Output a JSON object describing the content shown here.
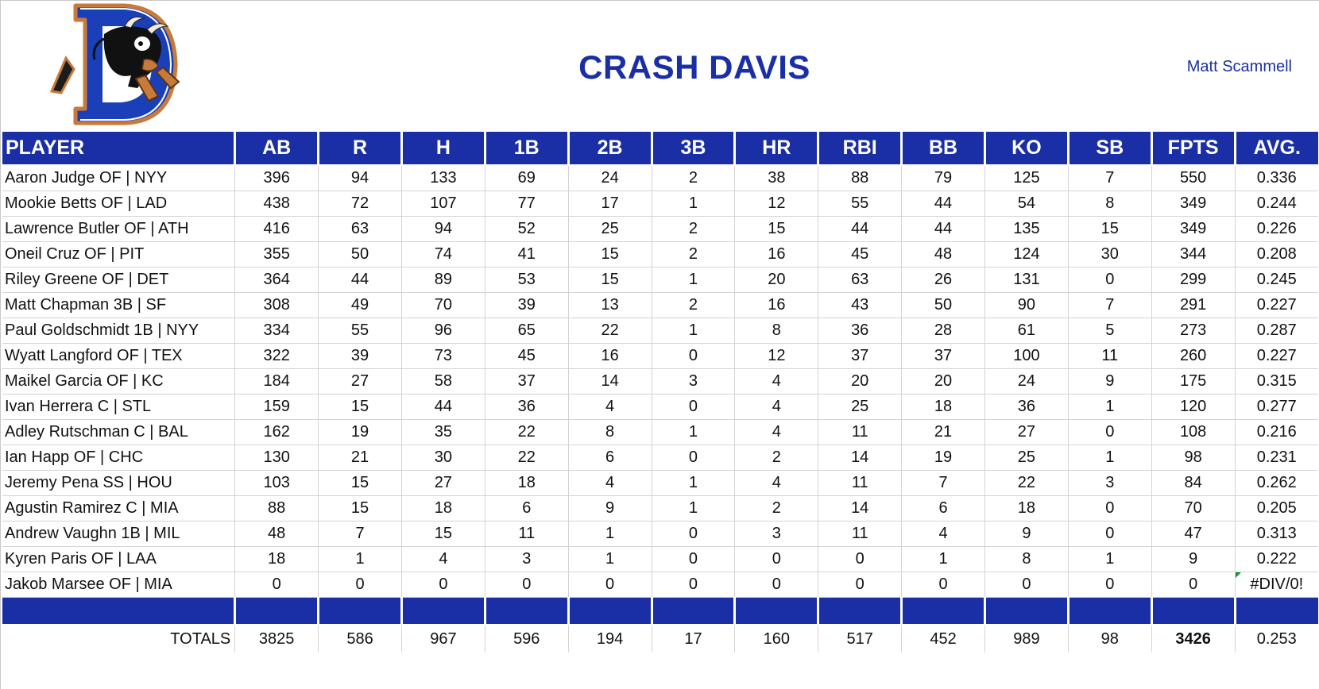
{
  "header": {
    "title": "CRASH DAVIS",
    "owner": "Matt Scammell"
  },
  "colors": {
    "accent": "#1a2fa6",
    "logo_orange": "#c87a3a",
    "error_flag": "#1f8f3a"
  },
  "columns": [
    "PLAYER",
    "AB",
    "R",
    "H",
    "1B",
    "2B",
    "3B",
    "HR",
    "RBI",
    "BB",
    "KO",
    "SB",
    "FPTS",
    "AVG."
  ],
  "rows": [
    [
      "Aaron Judge OF | NYY",
      "396",
      "94",
      "133",
      "69",
      "24",
      "2",
      "38",
      "88",
      "79",
      "125",
      "7",
      "550",
      "0.336"
    ],
    [
      "Mookie Betts OF | LAD",
      "438",
      "72",
      "107",
      "77",
      "17",
      "1",
      "12",
      "55",
      "44",
      "54",
      "8",
      "349",
      "0.244"
    ],
    [
      "Lawrence Butler OF | ATH",
      "416",
      "63",
      "94",
      "52",
      "25",
      "2",
      "15",
      "44",
      "44",
      "135",
      "15",
      "349",
      "0.226"
    ],
    [
      "Oneil Cruz OF | PIT",
      "355",
      "50",
      "74",
      "41",
      "15",
      "2",
      "16",
      "45",
      "48",
      "124",
      "30",
      "344",
      "0.208"
    ],
    [
      "Riley Greene OF | DET",
      "364",
      "44",
      "89",
      "53",
      "15",
      "1",
      "20",
      "63",
      "26",
      "131",
      "0",
      "299",
      "0.245"
    ],
    [
      "Matt Chapman 3B | SF",
      "308",
      "49",
      "70",
      "39",
      "13",
      "2",
      "16",
      "43",
      "50",
      "90",
      "7",
      "291",
      "0.227"
    ],
    [
      "Paul Goldschmidt 1B | NYY",
      "334",
      "55",
      "96",
      "65",
      "22",
      "1",
      "8",
      "36",
      "28",
      "61",
      "5",
      "273",
      "0.287"
    ],
    [
      "Wyatt Langford OF | TEX",
      "322",
      "39",
      "73",
      "45",
      "16",
      "0",
      "12",
      "37",
      "37",
      "100",
      "11",
      "260",
      "0.227"
    ],
    [
      "Maikel Garcia OF | KC",
      "184",
      "27",
      "58",
      "37",
      "14",
      "3",
      "4",
      "20",
      "20",
      "24",
      "9",
      "175",
      "0.315"
    ],
    [
      "Ivan Herrera C | STL",
      "159",
      "15",
      "44",
      "36",
      "4",
      "0",
      "4",
      "25",
      "18",
      "36",
      "1",
      "120",
      "0.277"
    ],
    [
      "Adley Rutschman C | BAL",
      "162",
      "19",
      "35",
      "22",
      "8",
      "1",
      "4",
      "11",
      "21",
      "27",
      "0",
      "108",
      "0.216"
    ],
    [
      "Ian Happ OF | CHC",
      "130",
      "21",
      "30",
      "22",
      "6",
      "0",
      "2",
      "14",
      "19",
      "25",
      "1",
      "98",
      "0.231"
    ],
    [
      "Jeremy Pena SS | HOU",
      "103",
      "15",
      "27",
      "18",
      "4",
      "1",
      "4",
      "11",
      "7",
      "22",
      "3",
      "84",
      "0.262"
    ],
    [
      "Agustin Ramirez C | MIA",
      "88",
      "15",
      "18",
      "6",
      "9",
      "1",
      "2",
      "14",
      "6",
      "18",
      "0",
      "70",
      "0.205"
    ],
    [
      "Andrew Vaughn 1B | MIL",
      "48",
      "7",
      "15",
      "11",
      "1",
      "0",
      "3",
      "11",
      "4",
      "9",
      "0",
      "47",
      "0.313"
    ],
    [
      "Kyren Paris OF | LAA",
      "18",
      "1",
      "4",
      "3",
      "1",
      "0",
      "0",
      "0",
      "1",
      "8",
      "1",
      "9",
      "0.222"
    ],
    [
      "Jakob Marsee OF | MIA",
      "0",
      "0",
      "0",
      "0",
      "0",
      "0",
      "0",
      "0",
      "0",
      "0",
      "0",
      "0",
      "#DIV/0!"
    ]
  ],
  "totals": [
    "TOTALS",
    "3825",
    "586",
    "967",
    "596",
    "194",
    "17",
    "160",
    "517",
    "452",
    "989",
    "98",
    "3426",
    "0.253"
  ]
}
